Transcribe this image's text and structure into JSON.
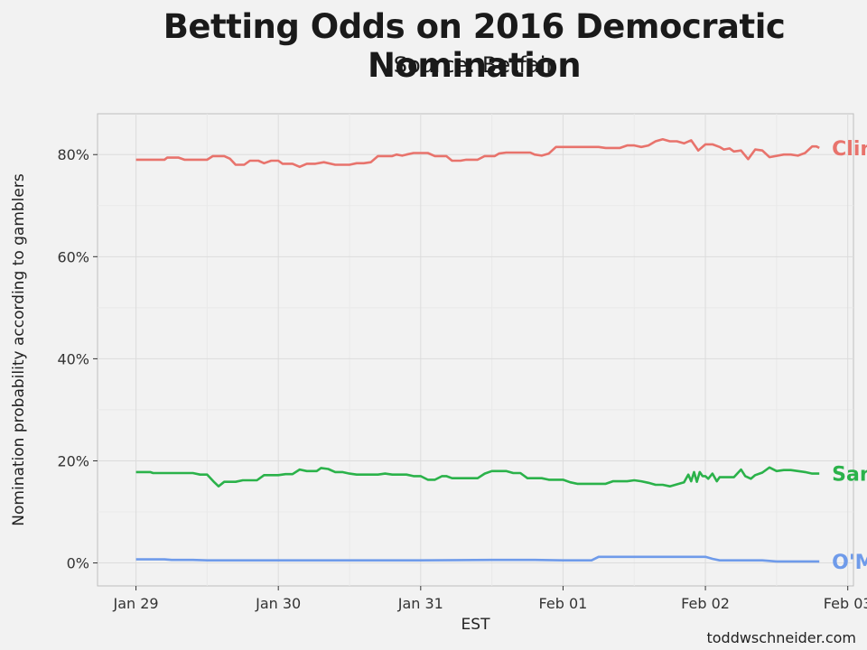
{
  "header": {
    "title": "Betting Odds on 2016 Democratic Nomination",
    "subtitle": "Source: Betfair"
  },
  "footer": {
    "credit": "toddwschneider.com"
  },
  "chart_data": {
    "type": "line",
    "title": "Betting Odds on 2016 Democratic Nomination",
    "subtitle": "Source: Betfair",
    "xlabel": "EST",
    "ylabel": "Nomination probability according to gamblers",
    "xlim": [
      -0.27,
      5.04
    ],
    "ylim": [
      -4.5,
      88
    ],
    "x_ticks": [
      {
        "x": 0,
        "label": "Jan 29"
      },
      {
        "x": 1,
        "label": "Jan 30"
      },
      {
        "x": 2,
        "label": "Jan 31"
      },
      {
        "x": 3,
        "label": "Feb 01"
      },
      {
        "x": 4,
        "label": "Feb 02"
      },
      {
        "x": 5,
        "label": "Feb 03"
      }
    ],
    "y_ticks": [
      {
        "y": 0,
        "label": "0%"
      },
      {
        "y": 20,
        "label": "20%"
      },
      {
        "y": 40,
        "label": "40%"
      },
      {
        "y": 60,
        "label": "60%"
      },
      {
        "y": 80,
        "label": "80%"
      }
    ],
    "grid": true,
    "series": [
      {
        "name": "Clinton",
        "color": "#e8736c",
        "points": [
          [
            0.0,
            79
          ],
          [
            0.2,
            79
          ],
          [
            0.22,
            79.4
          ],
          [
            0.3,
            79.4
          ],
          [
            0.34,
            79
          ],
          [
            0.5,
            79
          ],
          [
            0.54,
            79.7
          ],
          [
            0.62,
            79.7
          ],
          [
            0.66,
            79.2
          ],
          [
            0.7,
            78
          ],
          [
            0.76,
            78
          ],
          [
            0.8,
            78.8
          ],
          [
            0.86,
            78.8
          ],
          [
            0.9,
            78.3
          ],
          [
            0.95,
            78.8
          ],
          [
            1.0,
            78.8
          ],
          [
            1.03,
            78.2
          ],
          [
            1.1,
            78.2
          ],
          [
            1.15,
            77.6
          ],
          [
            1.2,
            78.2
          ],
          [
            1.26,
            78.2
          ],
          [
            1.32,
            78.5
          ],
          [
            1.4,
            78
          ],
          [
            1.5,
            78
          ],
          [
            1.55,
            78.3
          ],
          [
            1.6,
            78.3
          ],
          [
            1.65,
            78.5
          ],
          [
            1.7,
            79.7
          ],
          [
            1.8,
            79.7
          ],
          [
            1.83,
            80
          ],
          [
            1.87,
            79.8
          ],
          [
            1.9,
            80
          ],
          [
            1.95,
            80.3
          ],
          [
            2.0,
            80.3
          ],
          [
            2.05,
            80.3
          ],
          [
            2.1,
            79.7
          ],
          [
            2.18,
            79.7
          ],
          [
            2.22,
            78.8
          ],
          [
            2.28,
            78.8
          ],
          [
            2.32,
            79
          ],
          [
            2.4,
            79
          ],
          [
            2.45,
            79.7
          ],
          [
            2.52,
            79.7
          ],
          [
            2.55,
            80.2
          ],
          [
            2.6,
            80.4
          ],
          [
            2.7,
            80.4
          ],
          [
            2.77,
            80.4
          ],
          [
            2.8,
            80
          ],
          [
            2.85,
            79.8
          ],
          [
            2.9,
            80.2
          ],
          [
            2.95,
            81.5
          ],
          [
            3.0,
            81.5
          ],
          [
            3.1,
            81.5
          ],
          [
            3.2,
            81.5
          ],
          [
            3.25,
            81.5
          ],
          [
            3.3,
            81.3
          ],
          [
            3.4,
            81.3
          ],
          [
            3.45,
            81.8
          ],
          [
            3.5,
            81.8
          ],
          [
            3.55,
            81.5
          ],
          [
            3.6,
            81.8
          ],
          [
            3.65,
            82.6
          ],
          [
            3.7,
            83
          ],
          [
            3.75,
            82.6
          ],
          [
            3.8,
            82.6
          ],
          [
            3.85,
            82.2
          ],
          [
            3.9,
            82.8
          ],
          [
            3.95,
            80.8
          ],
          [
            4.0,
            82
          ],
          [
            4.05,
            82
          ],
          [
            4.1,
            81.5
          ],
          [
            4.13,
            81
          ],
          [
            4.17,
            81.2
          ],
          [
            4.2,
            80.6
          ],
          [
            4.25,
            80.8
          ],
          [
            4.3,
            79.1
          ],
          [
            4.35,
            81
          ],
          [
            4.4,
            80.8
          ],
          [
            4.45,
            79.5
          ],
          [
            4.55,
            80
          ],
          [
            4.6,
            80
          ],
          [
            4.65,
            79.8
          ],
          [
            4.7,
            80.3
          ],
          [
            4.75,
            81.6
          ],
          [
            4.78,
            81.6
          ],
          [
            4.8,
            81.3
          ]
        ]
      },
      {
        "name": "Sanders",
        "color": "#2bb24a",
        "points": [
          [
            0.0,
            17.8
          ],
          [
            0.1,
            17.8
          ],
          [
            0.12,
            17.6
          ],
          [
            0.3,
            17.6
          ],
          [
            0.4,
            17.6
          ],
          [
            0.45,
            17.3
          ],
          [
            0.5,
            17.3
          ],
          [
            0.55,
            15.8
          ],
          [
            0.58,
            15
          ],
          [
            0.62,
            15.9
          ],
          [
            0.7,
            15.9
          ],
          [
            0.75,
            16.2
          ],
          [
            0.85,
            16.2
          ],
          [
            0.9,
            17.2
          ],
          [
            1.0,
            17.2
          ],
          [
            1.05,
            17.4
          ],
          [
            1.1,
            17.4
          ],
          [
            1.15,
            18.3
          ],
          [
            1.2,
            18.0
          ],
          [
            1.27,
            18.0
          ],
          [
            1.3,
            18.6
          ],
          [
            1.35,
            18.4
          ],
          [
            1.4,
            17.8
          ],
          [
            1.45,
            17.8
          ],
          [
            1.5,
            17.5
          ],
          [
            1.55,
            17.3
          ],
          [
            1.65,
            17.3
          ],
          [
            1.7,
            17.3
          ],
          [
            1.75,
            17.5
          ],
          [
            1.8,
            17.3
          ],
          [
            1.9,
            17.3
          ],
          [
            1.95,
            17.0
          ],
          [
            2.0,
            17.0
          ],
          [
            2.05,
            16.3
          ],
          [
            2.1,
            16.3
          ],
          [
            2.15,
            17.0
          ],
          [
            2.18,
            17.0
          ],
          [
            2.22,
            16.6
          ],
          [
            2.3,
            16.6
          ],
          [
            2.4,
            16.6
          ],
          [
            2.45,
            17.5
          ],
          [
            2.5,
            18.0
          ],
          [
            2.6,
            18.0
          ],
          [
            2.65,
            17.6
          ],
          [
            2.7,
            17.6
          ],
          [
            2.75,
            16.6
          ],
          [
            2.85,
            16.6
          ],
          [
            2.9,
            16.3
          ],
          [
            3.0,
            16.3
          ],
          [
            3.05,
            15.8
          ],
          [
            3.1,
            15.5
          ],
          [
            3.15,
            15.5
          ],
          [
            3.25,
            15.5
          ],
          [
            3.3,
            15.5
          ],
          [
            3.35,
            16.0
          ],
          [
            3.45,
            16.0
          ],
          [
            3.5,
            16.2
          ],
          [
            3.55,
            16.0
          ],
          [
            3.6,
            15.7
          ],
          [
            3.65,
            15.3
          ],
          [
            3.7,
            15.3
          ],
          [
            3.75,
            15.0
          ],
          [
            3.8,
            15.4
          ],
          [
            3.85,
            15.8
          ],
          [
            3.88,
            17.3
          ],
          [
            3.9,
            16.0
          ],
          [
            3.92,
            17.8
          ],
          [
            3.94,
            15.9
          ],
          [
            3.96,
            17.8
          ],
          [
            3.98,
            17.0
          ],
          [
            4.0,
            17.0
          ],
          [
            4.02,
            16.5
          ],
          [
            4.05,
            17.5
          ],
          [
            4.08,
            16.0
          ],
          [
            4.1,
            16.8
          ],
          [
            4.15,
            16.8
          ],
          [
            4.2,
            16.8
          ],
          [
            4.25,
            18.3
          ],
          [
            4.28,
            17.0
          ],
          [
            4.32,
            16.5
          ],
          [
            4.35,
            17.2
          ],
          [
            4.4,
            17.7
          ],
          [
            4.45,
            18.7
          ],
          [
            4.5,
            18.0
          ],
          [
            4.55,
            18.2
          ],
          [
            4.6,
            18.2
          ],
          [
            4.65,
            18.0
          ],
          [
            4.7,
            17.8
          ],
          [
            4.75,
            17.5
          ],
          [
            4.8,
            17.5
          ]
        ]
      },
      {
        "name": "O'Malley",
        "color": "#6f9bea",
        "points": [
          [
            0.0,
            0.7
          ],
          [
            0.2,
            0.7
          ],
          [
            0.25,
            0.6
          ],
          [
            0.4,
            0.6
          ],
          [
            0.5,
            0.5
          ],
          [
            1.0,
            0.5
          ],
          [
            1.5,
            0.5
          ],
          [
            2.0,
            0.5
          ],
          [
            2.5,
            0.6
          ],
          [
            2.8,
            0.6
          ],
          [
            3.0,
            0.5
          ],
          [
            3.2,
            0.5
          ],
          [
            3.25,
            1.2
          ],
          [
            3.5,
            1.2
          ],
          [
            3.8,
            1.2
          ],
          [
            4.0,
            1.2
          ],
          [
            4.05,
            0.8
          ],
          [
            4.1,
            0.5
          ],
          [
            4.4,
            0.5
          ],
          [
            4.5,
            0.3
          ],
          [
            4.8,
            0.3
          ]
        ]
      }
    ]
  }
}
